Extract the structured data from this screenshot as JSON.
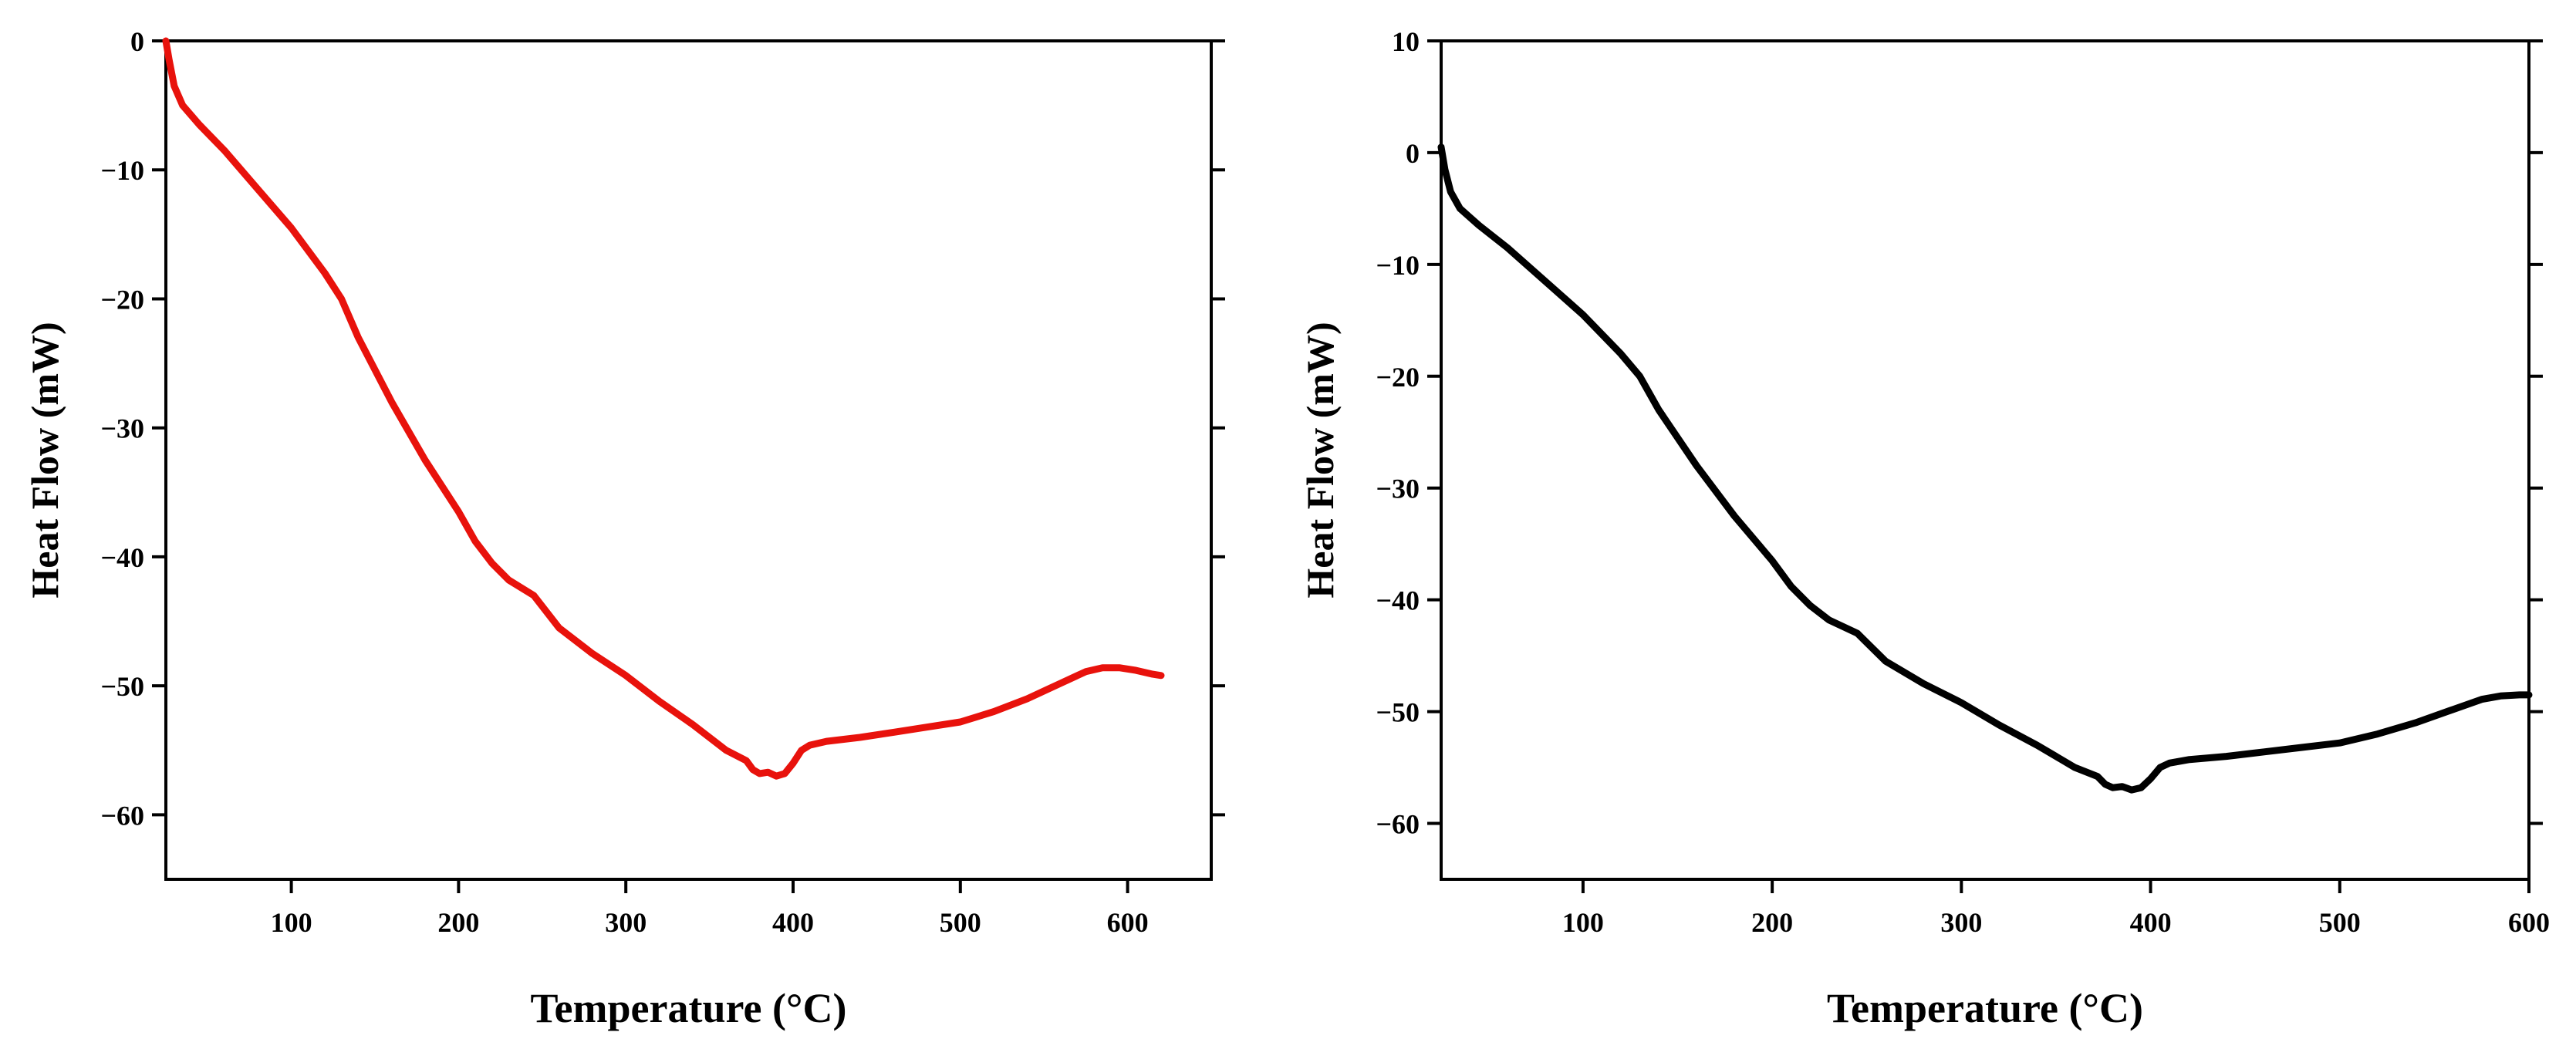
{
  "chart_data": [
    {
      "type": "line",
      "title": "",
      "xlabel": "Temperature (°C)",
      "ylabel": "Heat Flow (mW)",
      "xlim": [
        25,
        650
      ],
      "ylim": [
        -65,
        0
      ],
      "xticks": [
        100,
        200,
        300,
        400,
        500,
        600
      ],
      "yticks": [
        0,
        -10,
        -20,
        -30,
        -40,
        -50,
        -60
      ],
      "xtick_labels": [
        "100",
        "200",
        "300",
        "400",
        "500",
        "600"
      ],
      "ytick_labels": [
        "0",
        "−10",
        "−20",
        "−30",
        "−40",
        "−50",
        "−60"
      ],
      "grid": false,
      "legend": "none",
      "series": [
        {
          "name": "Heat Flow",
          "color": "#e8120c",
          "x": [
            25,
            27,
            30,
            35,
            45,
            60,
            80,
            100,
            120,
            130,
            140,
            160,
            180,
            200,
            210,
            220,
            230,
            245,
            260,
            280,
            300,
            320,
            340,
            360,
            372,
            376,
            380,
            385,
            390,
            395,
            400,
            405,
            410,
            420,
            440,
            460,
            480,
            500,
            520,
            540,
            560,
            575,
            585,
            595,
            605,
            615,
            620
          ],
          "y": [
            0,
            -1.5,
            -3.5,
            -5,
            -6.5,
            -8.5,
            -11.5,
            -14.5,
            -18,
            -20,
            -23,
            -28,
            -32.5,
            -36.5,
            -38.8,
            -40.5,
            -41.8,
            -43,
            -45.5,
            -47.5,
            -49.2,
            -51.2,
            -53,
            -55,
            -55.8,
            -56.5,
            -56.8,
            -56.7,
            -57,
            -56.8,
            -56,
            -55,
            -54.6,
            -54.3,
            -54,
            -53.6,
            -53.2,
            -52.8,
            -52,
            -51,
            -49.8,
            -48.9,
            -48.6,
            -48.6,
            -48.8,
            -49.1,
            -49.2
          ]
        }
      ]
    },
    {
      "type": "line",
      "title": "",
      "xlabel": "Temperature (°C)",
      "ylabel": "Heat Flow (mW)",
      "xlim": [
        25,
        600
      ],
      "ylim": [
        -65,
        10
      ],
      "xticks": [
        100,
        200,
        300,
        400,
        500,
        600
      ],
      "yticks": [
        10,
        0,
        -10,
        -20,
        -30,
        -40,
        -50,
        -60
      ],
      "xtick_labels": [
        "100",
        "200",
        "300",
        "400",
        "500",
        "600"
      ],
      "ytick_labels": [
        "10",
        "0",
        "−10",
        "−20",
        "−30",
        "−40",
        "−50",
        "−60"
      ],
      "grid": false,
      "legend": "none",
      "series": [
        {
          "name": "Heat Flow",
          "color": "#000000",
          "x": [
            25,
            27,
            30,
            35,
            45,
            60,
            80,
            100,
            120,
            130,
            140,
            160,
            180,
            200,
            210,
            220,
            230,
            245,
            260,
            280,
            300,
            320,
            340,
            360,
            372,
            376,
            380,
            385,
            390,
            395,
            400,
            405,
            410,
            420,
            440,
            460,
            480,
            500,
            520,
            540,
            560,
            575,
            585,
            595,
            600
          ],
          "y": [
            0.5,
            -1.5,
            -3.5,
            -5,
            -6.5,
            -8.5,
            -11.5,
            -14.5,
            -18,
            -20,
            -23,
            -28,
            -32.5,
            -36.5,
            -38.8,
            -40.5,
            -41.8,
            -43,
            -45.5,
            -47.5,
            -49.2,
            -51.2,
            -53,
            -55,
            -55.8,
            -56.5,
            -56.8,
            -56.7,
            -57,
            -56.8,
            -56,
            -55,
            -54.6,
            -54.3,
            -54,
            -53.6,
            -53.2,
            -52.8,
            -52,
            -51,
            -49.8,
            -48.9,
            -48.6,
            -48.5,
            -48.5
          ]
        }
      ]
    }
  ]
}
